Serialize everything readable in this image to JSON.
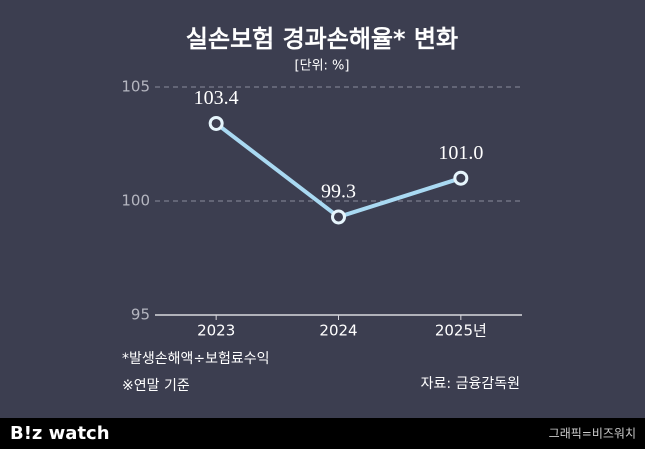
{
  "chart_data": {
    "type": "line",
    "title": "실손보험 경과손해율* 변화",
    "subtitle": "[단위: %]",
    "categories": [
      "2023",
      "2024",
      "2025년"
    ],
    "values": [
      103.4,
      99.3,
      101.0
    ],
    "value_labels": [
      "103.4",
      "99.3",
      "101.0"
    ],
    "color": "#a9d9f2",
    "ylim": [
      95,
      105
    ],
    "yticks": [
      95,
      100,
      105
    ],
    "grid": true
  },
  "notes": [
    "*발생손해액÷보험료수익",
    "※연말 기준"
  ],
  "source": "자료: 금융감독원",
  "footer": {
    "logo": "B!z watch",
    "credit": "그래픽=비즈워치"
  }
}
